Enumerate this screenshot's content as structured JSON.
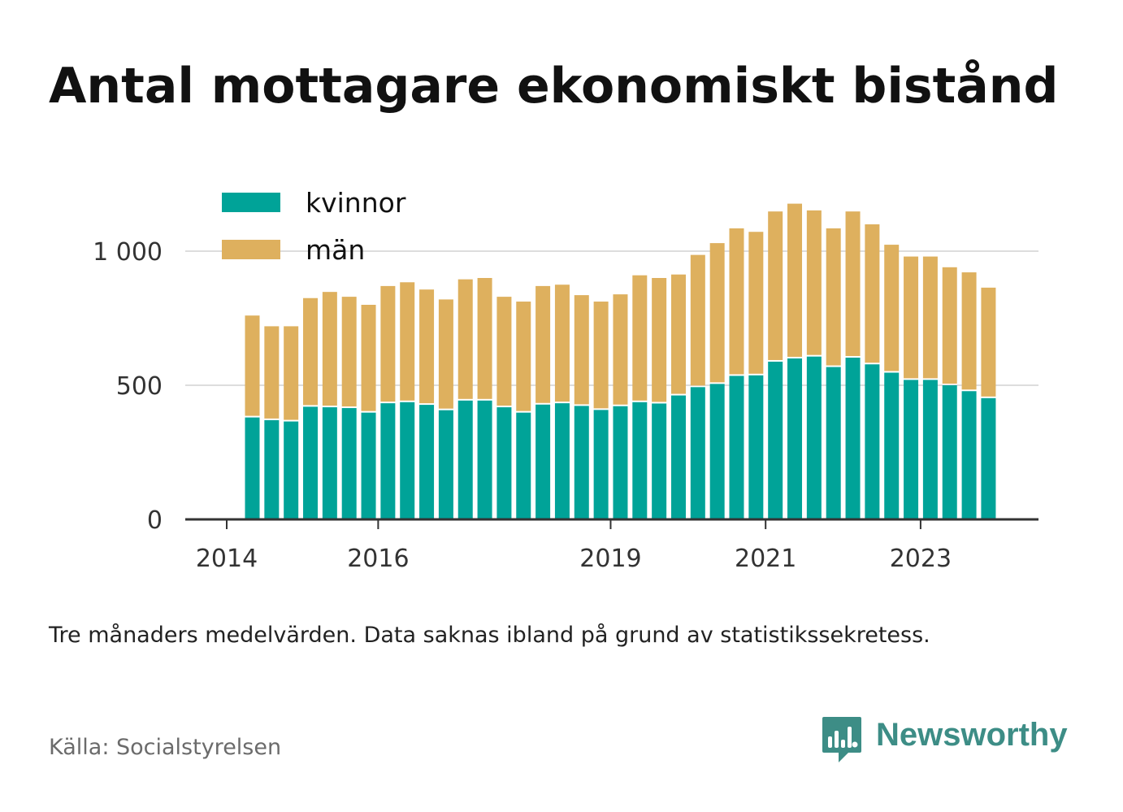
{
  "title": "Antal mottagare ekonomiskt bistånd",
  "note": "Tre månaders medelvärden. Data saknas ibland på grund av statistikssekretess.",
  "source": "Källa: Socialstyrelsen",
  "brand": {
    "name": "Newsworthy",
    "color": "#3d8d86",
    "icon": "newsworthy-logo-icon"
  },
  "chart_data": {
    "type": "bar",
    "stacked": true,
    "title": "",
    "xlabel": "",
    "ylabel": "",
    "ylim": [
      0,
      1250
    ],
    "yticks": [
      0,
      500,
      1000
    ],
    "ytick_labels": [
      "0",
      "500",
      "1 000"
    ],
    "xtick_labels": [
      "2014",
      "2016",
      "2019",
      "2021",
      "2023"
    ],
    "grid": true,
    "legend_position": "top-left",
    "colors": {
      "kvinnor": "#00a398",
      "män": "#deb05e"
    },
    "categories": [
      "2014-04",
      "2014-07",
      "2014-10",
      "2015-01",
      "2015-04",
      "2015-07",
      "2015-10",
      "2016-01",
      "2016-04",
      "2016-07",
      "2016-10",
      "2017-01",
      "2017-04",
      "2017-07",
      "2017-10",
      "2018-01",
      "2018-04",
      "2018-07",
      "2018-10",
      "2019-01",
      "2019-04",
      "2019-07",
      "2019-10",
      "2020-01",
      "2020-04",
      "2020-07",
      "2020-10",
      "2021-01",
      "2021-04",
      "2021-07",
      "2021-10",
      "2022-01",
      "2022-04",
      "2022-07",
      "2022-10",
      "2023-01",
      "2023-04",
      "2023-07",
      "2023-10"
    ],
    "series": [
      {
        "name": "kvinnor",
        "values": [
          380,
          370,
          365,
          420,
          418,
          415,
          398,
          433,
          437,
          427,
          407,
          443,
          443,
          418,
          398,
          428,
          433,
          423,
          408,
          422,
          437,
          432,
          462,
          493,
          505,
          535,
          537,
          588,
          600,
          607,
          568,
          603,
          578,
          547,
          520,
          520,
          500,
          478,
          452
        ]
      },
      {
        "name": "män",
        "values": [
          380,
          350,
          355,
          405,
          430,
          415,
          402,
          437,
          447,
          430,
          413,
          452,
          457,
          412,
          414,
          442,
          442,
          413,
          404,
          417,
          473,
          468,
          451,
          493,
          525,
          550,
          535,
          560,
          577,
          545,
          517,
          545,
          522,
          477,
          460,
          460,
          440,
          443,
          412
        ]
      }
    ]
  }
}
